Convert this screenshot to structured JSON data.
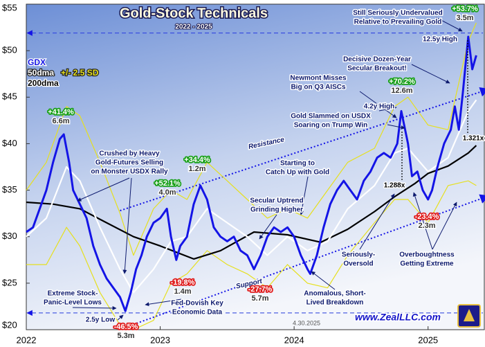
{
  "chart_data": {
    "type": "line",
    "title": "Gold-Stock Technicals",
    "subtitle": "2022 - 2025",
    "date_label": "4.30.2025",
    "website": "www.ZealLLC.com",
    "xlim": [
      2022,
      2025.42
    ],
    "xticks": [
      2022,
      2023,
      2024,
      2025
    ],
    "ylim": [
      20,
      55
    ],
    "yticks": [
      {
        "value": 20,
        "label": "$20"
      },
      {
        "value": 25,
        "label": "$25"
      },
      {
        "value": 30,
        "label": "$30"
      },
      {
        "value": 35,
        "label": "$35"
      },
      {
        "value": 40,
        "label": "$40"
      },
      {
        "value": 45,
        "label": "$45"
      },
      {
        "value": 50,
        "label": "$50"
      },
      {
        "value": 55,
        "label": "$55"
      }
    ],
    "series": [
      {
        "name": "GDX",
        "color": "#1414e6",
        "x": [
          2022.0,
          2022.05,
          2022.1,
          2022.15,
          2022.2,
          2022.25,
          2022.28,
          2022.32,
          2022.35,
          2022.4,
          2022.45,
          2022.5,
          2022.55,
          2022.6,
          2022.65,
          2022.7,
          2022.74,
          2022.78,
          2022.82,
          2022.86,
          2022.9,
          2022.95,
          2023.0,
          2023.05,
          2023.08,
          2023.12,
          2023.15,
          2023.2,
          2023.25,
          2023.3,
          2023.35,
          2023.4,
          2023.45,
          2023.5,
          2023.55,
          2023.6,
          2023.65,
          2023.7,
          2023.75,
          2023.8,
          2023.85,
          2023.9,
          2023.95,
          2024.0,
          2024.05,
          2024.1,
          2024.12,
          2024.17,
          2024.22,
          2024.27,
          2024.32,
          2024.37,
          2024.42,
          2024.47,
          2024.52,
          2024.57,
          2024.62,
          2024.67,
          2024.72,
          2024.77,
          2024.8,
          2024.85,
          2024.88,
          2024.92,
          2024.96,
          2025.0,
          2025.03,
          2025.07,
          2025.12,
          2025.17,
          2025.2,
          2025.23,
          2025.26,
          2025.3,
          2025.33,
          2025.36
        ],
        "values": [
          30.5,
          31,
          33,
          35,
          38,
          40.5,
          41,
          38,
          35,
          33.5,
          32,
          29,
          27,
          25.5,
          24.5,
          23.5,
          22,
          24,
          26.5,
          28,
          30,
          31.5,
          32,
          33,
          30,
          27.5,
          29,
          30,
          33.5,
          35.5,
          34,
          31,
          30,
          29.5,
          30,
          28.5,
          28,
          26.5,
          28,
          30,
          31,
          30.5,
          31,
          30,
          28,
          26.5,
          26,
          28,
          31,
          33.5,
          35,
          36,
          35,
          34,
          36,
          37,
          38.5,
          39,
          38.5,
          40,
          43.5,
          40,
          36.5,
          37,
          35,
          34,
          35,
          37.5,
          40,
          41.5,
          44,
          41.5,
          45.5,
          51.5,
          48,
          49.5
        ]
      },
      {
        "name": "50dma",
        "color": "#ffffff",
        "x": [
          2022.0,
          2022.15,
          2022.3,
          2022.4,
          2022.55,
          2022.7,
          2022.8,
          2022.95,
          2023.08,
          2023.2,
          2023.35,
          2023.5,
          2023.65,
          2023.8,
          2023.95,
          2024.1,
          2024.25,
          2024.4,
          2024.6,
          2024.75,
          2024.85,
          2025.0,
          2025.15,
          2025.3,
          2025.36
        ],
        "values": [
          30,
          32,
          37.5,
          36,
          31,
          26.5,
          24,
          26.5,
          29.5,
          30,
          33,
          31.5,
          30,
          28,
          30,
          28.5,
          29.5,
          33,
          35.5,
          39,
          39.5,
          37,
          38.5,
          43.5,
          44.7
        ]
      },
      {
        "name": "+/- 2.5 SD",
        "color": "#e6e01e",
        "x": [
          2022.0,
          2022.15,
          2022.3,
          2022.4,
          2022.55,
          2022.7,
          2022.8,
          2022.95,
          2023.08,
          2023.2,
          2023.35,
          2023.5,
          2023.65,
          2023.8,
          2023.95,
          2024.1,
          2024.25,
          2024.4,
          2024.6,
          2024.75,
          2024.85,
          2025.0,
          2025.15,
          2025.3,
          2025.36
        ],
        "values": [
          35,
          38,
          44,
          43,
          38,
          32.5,
          28,
          33,
          35,
          34,
          38,
          36,
          34,
          32,
          33,
          32,
          35,
          38,
          39.5,
          44,
          45,
          42,
          41.5,
          51,
          53
        ],
        "lower_values": [
          27,
          27,
          31,
          29,
          24,
          20.5,
          20,
          21,
          25,
          26,
          28.5,
          27,
          26,
          24.5,
          27,
          25,
          24.5,
          28,
          31.5,
          34,
          34,
          31.5,
          35.5,
          36,
          35.5
        ]
      },
      {
        "name": "200dma",
        "color": "#000000",
        "x": [
          2022.0,
          2022.2,
          2022.4,
          2022.6,
          2022.8,
          2023.0,
          2023.25,
          2023.45,
          2023.7,
          2023.95,
          2024.2,
          2024.4,
          2024.6,
          2024.75,
          2024.9,
          2025.0,
          2025.15,
          2025.3,
          2025.36
        ],
        "values": [
          33.7,
          33.5,
          33,
          31.5,
          30,
          29,
          27.6,
          28.5,
          30.5,
          30.2,
          29.4,
          30.8,
          32.7,
          34.3,
          35.7,
          36.8,
          37.6,
          39,
          39.8
        ]
      }
    ],
    "reference_lines": [
      51.9,
      21.8
    ],
    "trendlines": [
      {
        "label": "Resistance",
        "color": "#1414e6",
        "x": [
          2022.7,
          2025.42
        ],
        "y": [
          32.8,
          45.6
        ]
      },
      {
        "label": "Support",
        "color": "#1414e6",
        "x": [
          2022.75,
          2025.42
        ],
        "y": [
          20.3,
          34.1
        ]
      }
    ],
    "callouts": [
      {
        "change": "+41.4%",
        "duration": "6.6m"
      },
      {
        "change": "+34.4%",
        "duration": "1.2m"
      },
      {
        "change": "+52.1%",
        "duration": "4.0m"
      },
      {
        "change": "-19.8%",
        "duration": "1.4m"
      },
      {
        "change": "-46.5%",
        "duration": "5.3m"
      },
      {
        "change": "-27.7%",
        "duration": "5.7m"
      },
      {
        "change": "+70.2%",
        "duration": "12.6m"
      },
      {
        "change": "-23.4%",
        "duration": "2.3m"
      },
      {
        "change": "+53.7%",
        "duration": "3.5m"
      }
    ],
    "notes": [
      {
        "lines": [
          "Crushed by Heavy",
          "Gold-Futures Selling",
          "on Monster USDX Rally"
        ]
      },
      {
        "lines": [
          "Extreme Stock-",
          "Panic-Level Lows"
        ]
      },
      {
        "lines": [
          "2.5y Low"
        ]
      },
      {
        "lines": [
          "Fed-Dovish Key",
          "Economic Data"
        ]
      },
      {
        "lines": [
          "Secular Uptrend",
          "Grinding Higher"
        ]
      },
      {
        "lines": [
          "Starting to",
          "Catch Up with Gold"
        ]
      },
      {
        "lines": [
          "Anomalous, Short-",
          "Lived Breakdown"
        ]
      },
      {
        "lines": [
          "Newmont Misses",
          "Big on Q3 AISCs"
        ]
      },
      {
        "lines": [
          "4.2y High"
        ]
      },
      {
        "lines": [
          "Gold Slammed on USDX",
          "Soaring on Trump Win"
        ]
      },
      {
        "lines": [
          "Decisive Dozen-Year",
          "Secular Breakout!"
        ]
      },
      {
        "lines": [
          "Still Seriously Undervalued",
          "Relative to Prevailing Gold"
        ]
      },
      {
        "lines": [
          "12.5y High"
        ]
      },
      {
        "lines": [
          "Seriously-",
          "Oversold"
        ]
      },
      {
        "lines": [
          "Overboughtness",
          "Getting Extreme"
        ]
      },
      {
        "lines": [
          "1.288x"
        ]
      },
      {
        "lines": [
          "1.321x"
        ]
      }
    ]
  }
}
